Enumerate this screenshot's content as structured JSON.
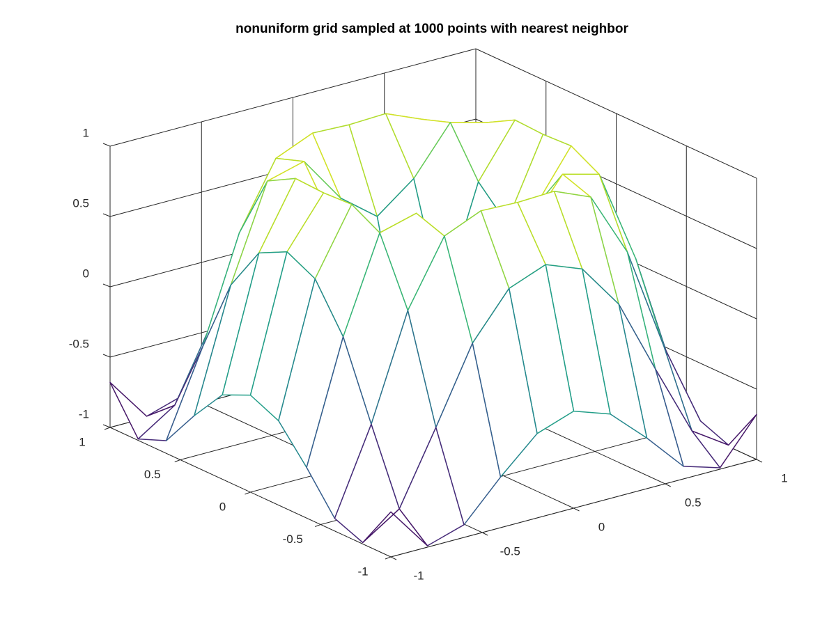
{
  "chart_data": {
    "type": "mesh3d",
    "title": "nonuniform grid sampled at 1000 points with nearest neighbor",
    "x": [
      -1,
      -0.8,
      -0.6,
      -0.4,
      -0.2,
      0,
      0.2,
      0.4,
      0.6,
      0.8,
      1
    ],
    "y": [
      -1,
      -0.8,
      -0.6,
      -0.4,
      -0.2,
      0,
      0.2,
      0.4,
      0.6,
      0.8,
      1
    ],
    "z": [
      [
        -0.68,
        -0.99,
        -0.91,
        -0.64,
        -0.4,
        -0.31,
        -0.4,
        -0.64,
        -0.91,
        -0.99,
        -0.68
      ],
      [
        -0.99,
        -0.82,
        -0.31,
        0.22,
        0.54,
        0.64,
        0.54,
        0.22,
        -0.31,
        -0.82,
        -0.99
      ],
      [
        -0.91,
        -0.31,
        0.43,
        0.89,
        1,
        0.99,
        1,
        0.89,
        0.43,
        -0.31,
        -0.91
      ],
      [
        -0.64,
        0.22,
        0.89,
        0.96,
        0.63,
        0.43,
        0.63,
        0.96,
        0.89,
        0.22,
        -0.64
      ],
      [
        -0.4,
        0.54,
        1,
        0.63,
        -0.15,
        -0.54,
        -0.15,
        0.63,
        1,
        0.54,
        -0.4
      ],
      [
        -0.31,
        0.64,
        0.99,
        0.43,
        -0.54,
        -1,
        -0.54,
        0.43,
        0.99,
        0.64,
        -0.31
      ],
      [
        -0.4,
        0.54,
        1,
        0.63,
        -0.15,
        -0.54,
        -0.15,
        0.63,
        1,
        0.54,
        -0.4
      ],
      [
        -0.64,
        0.22,
        0.89,
        0.96,
        0.63,
        0.43,
        0.63,
        0.96,
        0.89,
        0.22,
        -0.64
      ],
      [
        -0.91,
        -0.31,
        0.43,
        0.89,
        1,
        0.99,
        1,
        0.89,
        0.43,
        -0.31,
        -0.91
      ],
      [
        -0.99,
        -0.82,
        -0.31,
        0.22,
        0.54,
        0.64,
        0.54,
        0.22,
        -0.31,
        -0.82,
        -0.99
      ],
      [
        -0.68,
        -0.99,
        -0.91,
        -0.64,
        -0.4,
        -0.31,
        -0.4,
        -0.64,
        -0.91,
        -0.99,
        -0.68
      ]
    ],
    "xlim": [
      -1,
      1
    ],
    "ylim": [
      -1,
      1
    ],
    "zlim": [
      -1,
      1
    ],
    "xticks": [
      -1,
      -0.5,
      0,
      0.5,
      1
    ],
    "yticks": [
      -1,
      -0.5,
      0,
      0.5,
      1
    ],
    "zticks": [
      -1,
      -0.5,
      0,
      0.5,
      1
    ],
    "colormap": "viridis",
    "grid": true
  }
}
